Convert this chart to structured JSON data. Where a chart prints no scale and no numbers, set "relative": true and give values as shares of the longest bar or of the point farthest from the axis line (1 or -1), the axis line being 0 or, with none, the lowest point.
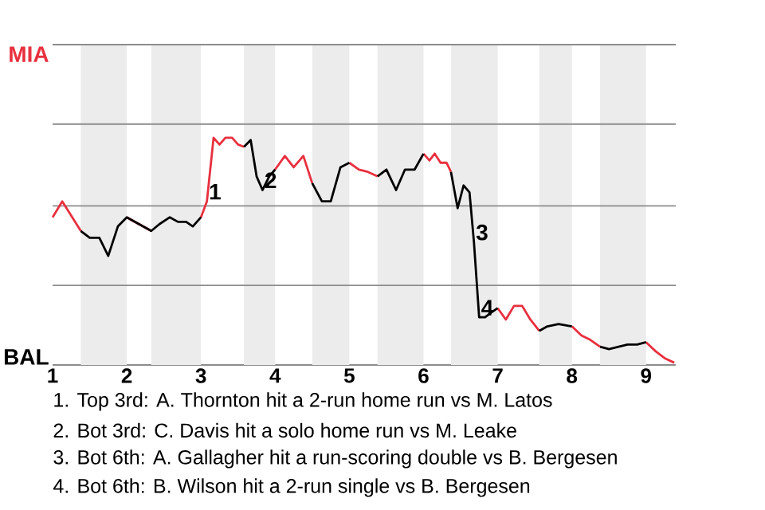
{
  "chart_data": {
    "type": "line",
    "relative": true,
    "x": [
      1,
      1.13,
      1.38,
      1.5,
      1.63,
      1.75,
      1.88,
      2,
      2.33,
      2.44,
      2.58,
      2.69,
      2.8,
      2.89,
      3,
      3.08,
      3.17,
      3.25,
      3.33,
      3.42,
      3.5,
      3.58,
      3.67,
      3.75,
      3.83,
      3.92,
      4,
      4.13,
      4.25,
      4.38,
      4.5,
      4.63,
      4.75,
      4.88,
      5,
      5.13,
      5.25,
      5.38,
      5.5,
      5.63,
      5.75,
      5.88,
      6,
      6.08,
      6.15,
      6.23,
      6.31,
      6.37,
      6.46,
      6.54,
      6.62,
      6.68,
      6.75,
      6.83,
      6.91,
      7,
      7.11,
      7.22,
      7.33,
      7.44,
      7.56,
      7.67,
      7.82,
      8,
      8.13,
      8.25,
      8.38,
      8.5,
      8.63,
      8.75,
      8.88,
      9,
      9.13,
      9.25,
      9.38
    ],
    "xlim": [
      1,
      9.4
    ],
    "xticks": [
      1,
      2,
      3,
      4,
      5,
      6,
      7,
      8,
      9
    ],
    "series": [
      {
        "color": "#e8303f",
        "values": [
          0.65,
          0.72,
          0.59,
          null,
          null,
          null,
          null,
          0.65,
          0.59,
          null,
          null,
          null,
          null,
          null,
          0.65,
          0.72,
          1,
          0.97,
          1,
          1,
          0.97,
          0.96,
          null,
          null,
          null,
          null,
          0.86,
          0.92,
          0.87,
          0.92,
          0.8,
          null,
          null,
          null,
          0.89,
          0.86,
          0.85,
          0.83,
          null,
          null,
          null,
          null,
          0.93,
          0.9,
          0.93,
          0.89,
          0.89,
          0.85,
          null,
          null,
          null,
          null,
          null,
          null,
          null,
          0.25,
          0.2,
          0.26,
          0.26,
          0.2,
          0.15,
          null,
          null,
          0.17,
          0.13,
          0.11,
          0.08,
          null,
          null,
          null,
          null,
          0.1,
          0.06,
          0.03,
          0.01
        ]
      },
      {
        "color": "#000000",
        "values": [
          null,
          null,
          0.59,
          0.56,
          0.56,
          0.48,
          0.61,
          0.65,
          0.59,
          0.62,
          0.65,
          0.63,
          0.63,
          0.61,
          0.65,
          null,
          null,
          null,
          null,
          null,
          null,
          0.96,
          0.99,
          0.83,
          0.77,
          0.83,
          0.86,
          null,
          null,
          null,
          0.8,
          0.72,
          0.72,
          0.87,
          0.89,
          null,
          null,
          0.83,
          0.86,
          0.77,
          0.86,
          0.86,
          0.93,
          null,
          null,
          null,
          null,
          0.85,
          0.69,
          0.79,
          0.76,
          0.54,
          0.21,
          0.21,
          0.23,
          0.25,
          null,
          null,
          null,
          null,
          0.15,
          0.17,
          0.18,
          0.17,
          null,
          null,
          0.08,
          0.07,
          0.08,
          0.09,
          0.09,
          0.1,
          null,
          null,
          null
        ]
      }
    ],
    "ref_lines": [
      {
        "axis": "y",
        "value": 0.35,
        "color": "#8c8c8c"
      },
      {
        "axis": "y",
        "value": 0.7,
        "color": "#8c8c8c"
      },
      {
        "axis": "y",
        "value": 1.06,
        "color": "#8c8c8c"
      },
      {
        "axis": "y",
        "value": 1.41,
        "color": "#8c8c8c"
      }
    ],
    "bands": [
      {
        "axis": "x",
        "from": 1.38,
        "to": 2,
        "color": "#ececec"
      },
      {
        "axis": "x",
        "from": 2.33,
        "to": 3,
        "color": "#ececec"
      },
      {
        "axis": "x",
        "from": 3.58,
        "to": 4,
        "color": "#ececec"
      },
      {
        "axis": "x",
        "from": 4.5,
        "to": 5,
        "color": "#ececec"
      },
      {
        "axis": "x",
        "from": 5.38,
        "to": 6,
        "color": "#ececec"
      },
      {
        "axis": "x",
        "from": 6.37,
        "to": 7,
        "color": "#ececec"
      },
      {
        "axis": "x",
        "from": 7.56,
        "to": 8,
        "color": "#ececec"
      },
      {
        "axis": "x",
        "from": 8.38,
        "to": 9,
        "color": "#ececec"
      }
    ],
    "annotations": [
      "MIA",
      "BAL",
      {
        "text": "1",
        "x": 3.08,
        "y": 0.72
      },
      {
        "text": "2",
        "x": 3.83,
        "y": 0.77
      },
      {
        "text": "3",
        "x": 6.68,
        "y": 0.54
      },
      {
        "text": "4",
        "x": 6.75,
        "y": 0.21
      },
      "1. Top 3rd: A. Thornton hit a 2-run home run vs M. Latos",
      "2. Bot 3rd: C. Davis hit a solo home run vs M. Leake",
      "3. Bot 6th: A. Gallagher hit a run-scoring double vs B. Bergesen",
      "4. Bot 6th: B. Wilson hit a 2-run single vs B. Bergesen"
    ]
  }
}
